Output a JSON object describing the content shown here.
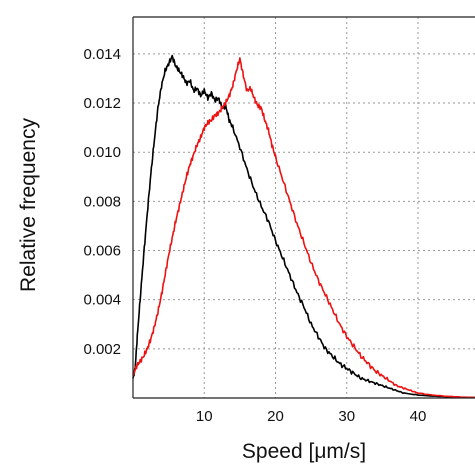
{
  "chart_data": {
    "type": "line",
    "title": "",
    "xlabel": "Speed [μm/s]",
    "ylabel": "Relative frequency",
    "xlim": [
      0,
      48
    ],
    "ylim": [
      0,
      0.0155
    ],
    "grid": true,
    "legend": "none",
    "x_ticks": [
      {
        "value": 10,
        "label": "10"
      },
      {
        "value": 20,
        "label": "20"
      },
      {
        "value": 30,
        "label": "30"
      },
      {
        "value": 40,
        "label": "40"
      }
    ],
    "y_ticks": [
      {
        "value": 0.002,
        "label": "0.002"
      },
      {
        "value": 0.004,
        "label": "0.004"
      },
      {
        "value": 0.006,
        "label": "0.006"
      },
      {
        "value": 0.008,
        "label": "0.008"
      },
      {
        "value": 0.01,
        "label": "0.010"
      },
      {
        "value": 0.012,
        "label": "0.012"
      },
      {
        "value": 0.014,
        "label": "0.014"
      }
    ],
    "series": [
      {
        "color": "#000000",
        "points": [
          [
            0.0,
            0.0008
          ],
          [
            0.3,
            0.0012
          ],
          [
            0.6,
            0.0025
          ],
          [
            1.0,
            0.004
          ],
          [
            1.5,
            0.0058
          ],
          [
            2.0,
            0.0075
          ],
          [
            2.5,
            0.0091
          ],
          [
            3.0,
            0.0105
          ],
          [
            3.5,
            0.0118
          ],
          [
            4.0,
            0.0127
          ],
          [
            4.5,
            0.0133
          ],
          [
            5.0,
            0.0136
          ],
          [
            5.5,
            0.0139
          ],
          [
            6.0,
            0.0135
          ],
          [
            6.5,
            0.0133
          ],
          [
            7.0,
            0.0131
          ],
          [
            7.5,
            0.0128
          ],
          [
            8.0,
            0.0129
          ],
          [
            8.5,
            0.0125
          ],
          [
            9.0,
            0.0126
          ],
          [
            9.5,
            0.0123
          ],
          [
            10.0,
            0.0125
          ],
          [
            10.5,
            0.0122
          ],
          [
            11.0,
            0.0124
          ],
          [
            11.5,
            0.0121
          ],
          [
            12.0,
            0.0122
          ],
          [
            12.5,
            0.0118
          ],
          [
            13.0,
            0.0119
          ],
          [
            13.5,
            0.0113
          ],
          [
            14.0,
            0.011
          ],
          [
            15.0,
            0.0102
          ],
          [
            16.0,
            0.0093
          ],
          [
            17.0,
            0.0085
          ],
          [
            18.0,
            0.0078
          ],
          [
            19.0,
            0.0072
          ],
          [
            20.0,
            0.0064
          ],
          [
            21.0,
            0.0057
          ],
          [
            22.0,
            0.005
          ],
          [
            23.0,
            0.0043
          ],
          [
            24.0,
            0.0037
          ],
          [
            25.0,
            0.003
          ],
          [
            26.0,
            0.0025
          ],
          [
            27.0,
            0.002
          ],
          [
            28.0,
            0.0017
          ],
          [
            29.0,
            0.0014
          ],
          [
            30.0,
            0.0012
          ],
          [
            31.0,
            0.001
          ],
          [
            32.0,
            0.0008
          ],
          [
            33.0,
            0.0007
          ],
          [
            34.0,
            0.0006
          ],
          [
            35.0,
            0.0005
          ],
          [
            36.0,
            0.0004
          ],
          [
            37.0,
            0.0003
          ],
          [
            38.0,
            0.0002
          ],
          [
            40.0,
            0.00012
          ],
          [
            42.0,
            8e-05
          ],
          [
            44.0,
            5e-05
          ],
          [
            46.0,
            3e-05
          ],
          [
            48.0,
            2e-05
          ]
        ]
      },
      {
        "color": "#ee1111",
        "points": [
          [
            0.0,
            0.0009
          ],
          [
            0.5,
            0.0013
          ],
          [
            1.0,
            0.0015
          ],
          [
            1.5,
            0.0017
          ],
          [
            2.0,
            0.002
          ],
          [
            2.5,
            0.0024
          ],
          [
            3.0,
            0.0029
          ],
          [
            3.5,
            0.0035
          ],
          [
            4.0,
            0.0042
          ],
          [
            4.5,
            0.005
          ],
          [
            5.0,
            0.0058
          ],
          [
            5.5,
            0.0065
          ],
          [
            6.0,
            0.0072
          ],
          [
            6.5,
            0.0078
          ],
          [
            7.0,
            0.0084
          ],
          [
            7.5,
            0.009
          ],
          [
            8.0,
            0.0095
          ],
          [
            8.5,
            0.0099
          ],
          [
            9.0,
            0.0103
          ],
          [
            9.5,
            0.0106
          ],
          [
            10.0,
            0.011
          ],
          [
            10.5,
            0.0112
          ],
          [
            11.0,
            0.0113
          ],
          [
            11.5,
            0.0115
          ],
          [
            12.0,
            0.0116
          ],
          [
            12.5,
            0.0118
          ],
          [
            13.0,
            0.012
          ],
          [
            13.5,
            0.0123
          ],
          [
            14.0,
            0.0127
          ],
          [
            14.5,
            0.0133
          ],
          [
            15.0,
            0.0138
          ],
          [
            15.5,
            0.0131
          ],
          [
            16.0,
            0.0125
          ],
          [
            16.5,
            0.0126
          ],
          [
            17.0,
            0.0122
          ],
          [
            17.5,
            0.0119
          ],
          [
            18.0,
            0.0118
          ],
          [
            18.5,
            0.0113
          ],
          [
            19.0,
            0.0109
          ],
          [
            19.5,
            0.0103
          ],
          [
            20.0,
            0.0098
          ],
          [
            21.0,
            0.0089
          ],
          [
            22.0,
            0.008
          ],
          [
            23.0,
            0.0071
          ],
          [
            24.0,
            0.0063
          ],
          [
            25.0,
            0.0055
          ],
          [
            26.0,
            0.0048
          ],
          [
            27.0,
            0.0042
          ],
          [
            28.0,
            0.0036
          ],
          [
            29.0,
            0.003
          ],
          [
            30.0,
            0.0025
          ],
          [
            31.0,
            0.0021
          ],
          [
            32.0,
            0.0017
          ],
          [
            33.0,
            0.0014
          ],
          [
            34.0,
            0.0011
          ],
          [
            35.0,
            0.0009
          ],
          [
            36.0,
            0.0007
          ],
          [
            37.0,
            0.0005
          ],
          [
            38.0,
            0.0004
          ],
          [
            39.0,
            0.0003
          ],
          [
            40.0,
            0.0002
          ],
          [
            42.0,
            0.00012
          ],
          [
            44.0,
            7e-05
          ],
          [
            46.0,
            4e-05
          ],
          [
            48.0,
            2e-05
          ]
        ]
      }
    ]
  }
}
